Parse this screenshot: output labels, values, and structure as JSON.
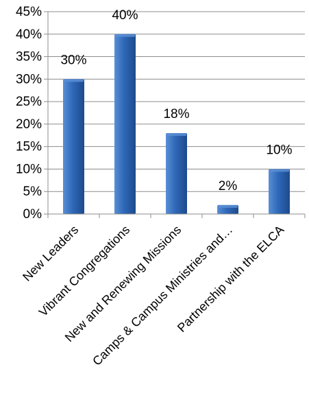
{
  "chart_data": {
    "type": "bar",
    "categories": [
      "New Leaders",
      "Vibrant Congregations",
      "New and Renewing Missions",
      "Camps & Campus Ministries and…",
      "Partnership with the ELCA"
    ],
    "values": [
      30,
      40,
      18,
      2,
      10
    ],
    "data_labels": [
      "30%",
      "40%",
      "18%",
      "2%",
      "10%"
    ],
    "ylim": [
      0,
      45
    ],
    "yticks": [
      0,
      5,
      10,
      15,
      20,
      25,
      30,
      35,
      40,
      45
    ],
    "ytick_labels": [
      "0%",
      "5%",
      "10%",
      "15%",
      "20%",
      "25%",
      "30%",
      "35%",
      "40%",
      "45%"
    ],
    "grid": true,
    "legend": "none",
    "colors": {
      "bar_light": "#5a8fd6",
      "bar": "#2f68b8",
      "bar_dark": "#1d4a8c",
      "grid": "#8c8c8c",
      "axis": "#8c8c8c"
    }
  }
}
